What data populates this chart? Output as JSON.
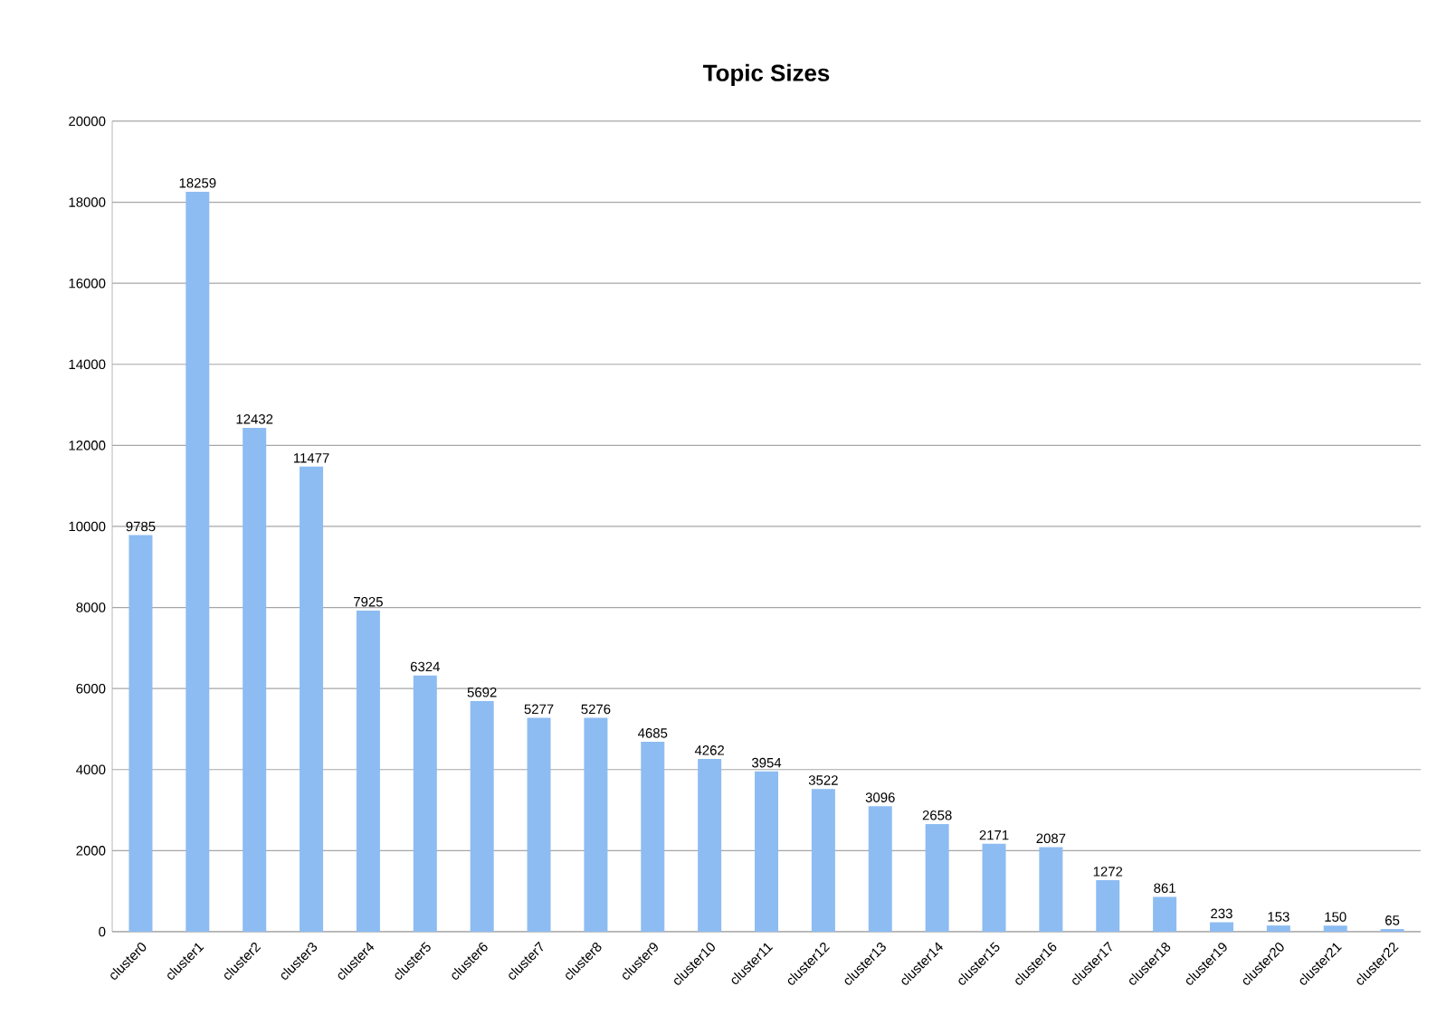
{
  "chart_data": {
    "type": "bar",
    "title": "Topic Sizes",
    "categories": [
      "cluster0",
      "cluster1",
      "cluster2",
      "cluster3",
      "cluster4",
      "cluster5",
      "cluster6",
      "cluster7",
      "cluster8",
      "cluster9",
      "cluster10",
      "cluster11",
      "cluster12",
      "cluster13",
      "cluster14",
      "cluster15",
      "cluster16",
      "cluster17",
      "cluster18",
      "cluster19",
      "cluster20",
      "cluster21",
      "cluster22"
    ],
    "values": [
      9785,
      18259,
      12432,
      11477,
      7925,
      6324,
      5692,
      5277,
      5276,
      4685,
      4262,
      3954,
      3522,
      3096,
      2658,
      2171,
      2087,
      1272,
      861,
      233,
      153,
      150,
      65
    ],
    "color": "#8dbcf2",
    "ylim": [
      0,
      20000
    ],
    "yticks": [
      0,
      2000,
      4000,
      6000,
      8000,
      10000,
      12000,
      14000,
      16000,
      18000,
      20000
    ],
    "grid": "y",
    "data_labels": true
  }
}
